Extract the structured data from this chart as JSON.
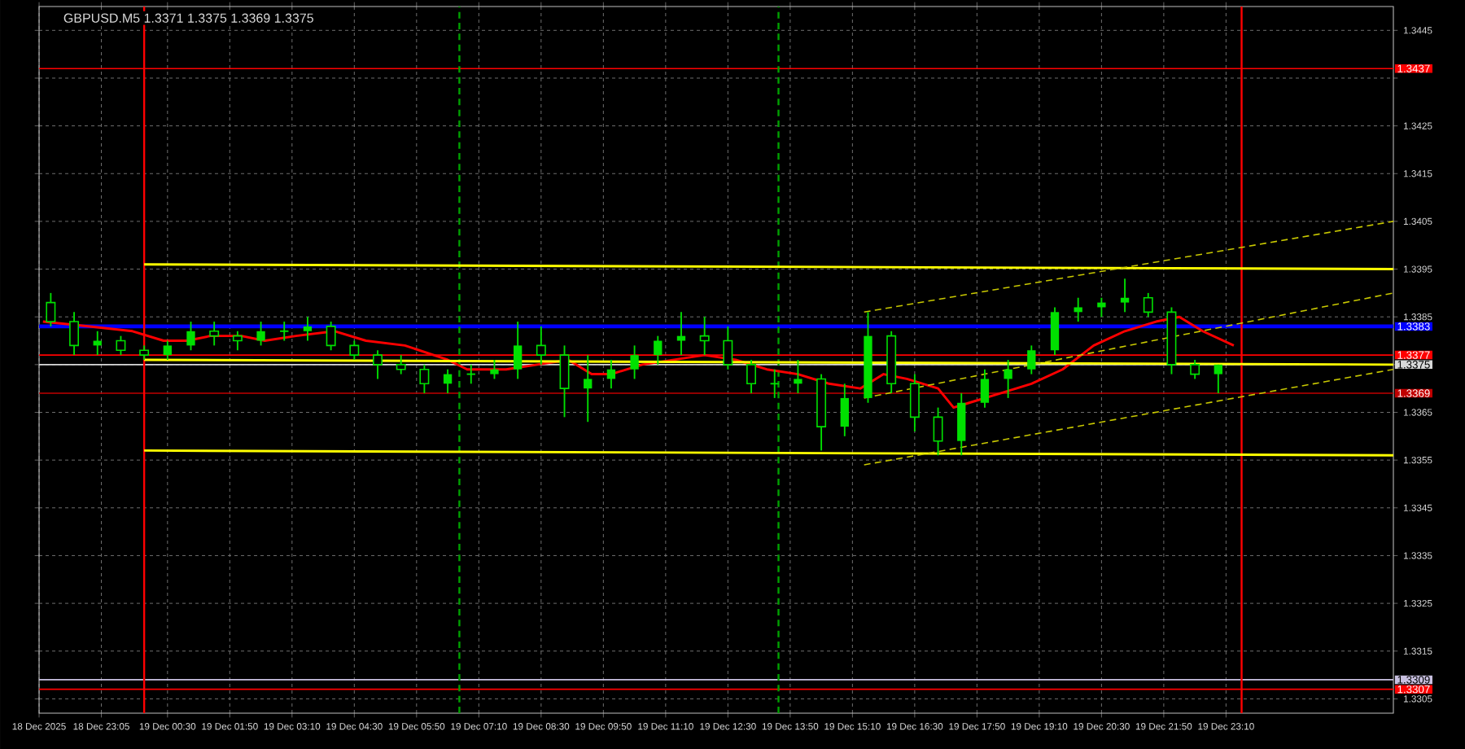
{
  "chart_data": {
    "type": "candlestick",
    "title": "GBPUSD.M5  1.3371 1.3375 1.3369 1.3375",
    "xlim": [
      "2025-12-18T21:45",
      "2025-12-20T02:45"
    ],
    "ylim": [
      1.3302,
      1.345
    ],
    "xticks": [
      {
        "value": "2025-12-18T21:45",
        "label": "18 Dec 2025"
      },
      {
        "value": "2025-12-18T23:05",
        "label": "18 Dec 23:05"
      },
      {
        "value": "2025-12-19T00:30",
        "label": "19 Dec 00:30"
      },
      {
        "value": "2025-12-19T01:50",
        "label": "19 Dec 01:50"
      },
      {
        "value": "2025-12-19T03:10",
        "label": "19 Dec 03:10"
      },
      {
        "value": "2025-12-19T04:30",
        "label": "19 Dec 04:30"
      },
      {
        "value": "2025-12-19T05:50",
        "label": "19 Dec 05:50"
      },
      {
        "value": "2025-12-19T07:10",
        "label": "19 Dec 07:10"
      },
      {
        "value": "2025-12-19T08:30",
        "label": "19 Dec 08:30"
      },
      {
        "value": "2025-12-19T09:50",
        "label": "19 Dec 09:50"
      },
      {
        "value": "2025-12-19T11:10",
        "label": "19 Dec 11:10"
      },
      {
        "value": "2025-12-19T12:30",
        "label": "19 Dec 12:30"
      },
      {
        "value": "2025-12-19T13:50",
        "label": "19 Dec 13:50"
      },
      {
        "value": "2025-12-19T15:10",
        "label": "19 Dec 15:10"
      },
      {
        "value": "2025-12-19T16:30",
        "label": "19 Dec 16:30"
      },
      {
        "value": "2025-12-19T17:50",
        "label": "19 Dec 17:50"
      },
      {
        "value": "2025-12-19T19:10",
        "label": "19 Dec 19:10"
      },
      {
        "value": "2025-12-19T20:30",
        "label": "19 Dec 20:30"
      },
      {
        "value": "2025-12-19T21:50",
        "label": "19 Dec 21:50"
      },
      {
        "value": "2025-12-19T23:10",
        "label": "19 Dec 23:10"
      }
    ],
    "yticks": [
      1.3445,
      {
        "value": 1.3435,
        "label": null
      },
      1.3425,
      1.3415,
      1.3405,
      1.3395,
      1.3385,
      {
        "value": 1.3375,
        "label": null
      },
      1.3365,
      1.3355,
      1.3345,
      1.3335,
      1.3325,
      1.3315,
      1.3305
    ],
    "grid": true,
    "series": [
      {
        "color": "#00e000",
        "x": [
          "2025-12-18T22:00",
          "2025-12-18T22:30",
          "2025-12-18T23:00",
          "2025-12-18T23:30",
          "2025-12-19T00:00",
          "2025-12-19T00:30",
          "2025-12-19T01:00",
          "2025-12-19T01:30",
          "2025-12-19T02:00",
          "2025-12-19T02:30",
          "2025-12-19T03:00",
          "2025-12-19T03:30",
          "2025-12-19T04:00",
          "2025-12-19T04:30",
          "2025-12-19T05:00",
          "2025-12-19T05:30",
          "2025-12-19T06:00",
          "2025-12-19T06:30",
          "2025-12-19T07:00",
          "2025-12-19T07:30",
          "2025-12-19T08:00",
          "2025-12-19T08:30",
          "2025-12-19T09:00",
          "2025-12-19T09:30",
          "2025-12-19T10:00",
          "2025-12-19T10:30",
          "2025-12-19T11:00",
          "2025-12-19T11:30",
          "2025-12-19T12:00",
          "2025-12-19T12:30",
          "2025-12-19T13:00",
          "2025-12-19T13:30",
          "2025-12-19T14:00",
          "2025-12-19T14:30",
          "2025-12-19T15:00",
          "2025-12-19T15:30",
          "2025-12-19T16:00",
          "2025-12-19T16:30",
          "2025-12-19T17:00",
          "2025-12-19T17:30",
          "2025-12-19T18:00",
          "2025-12-19T18:30",
          "2025-12-19T19:00",
          "2025-12-19T19:30",
          "2025-12-19T20:00",
          "2025-12-19T20:30",
          "2025-12-19T21:00",
          "2025-12-19T21:30",
          "2025-12-19T22:00",
          "2025-12-19T22:30",
          "2025-12-19T23:00"
        ],
        "ohlc": [
          [
            1.3388,
            1.339,
            1.3383,
            1.3384
          ],
          [
            1.3384,
            1.3386,
            1.3377,
            1.3379
          ],
          [
            1.3379,
            1.3382,
            1.3377,
            1.338
          ],
          [
            1.338,
            1.3381,
            1.3377,
            1.3378
          ],
          [
            1.3378,
            1.3379,
            1.3376,
            1.3377
          ],
          [
            1.3377,
            1.338,
            1.3376,
            1.3379
          ],
          [
            1.3379,
            1.3384,
            1.3378,
            1.3382
          ],
          [
            1.3382,
            1.3384,
            1.3379,
            1.3381
          ],
          [
            1.3381,
            1.3382,
            1.3378,
            1.338
          ],
          [
            1.338,
            1.3384,
            1.3379,
            1.3382
          ],
          [
            1.3382,
            1.3384,
            1.338,
            1.3382
          ],
          [
            1.3382,
            1.3385,
            1.338,
            1.3383
          ],
          [
            1.3383,
            1.3384,
            1.3378,
            1.3379
          ],
          [
            1.3379,
            1.338,
            1.3376,
            1.3377
          ],
          [
            1.3377,
            1.3378,
            1.3372,
            1.3375
          ],
          [
            1.3375,
            1.3377,
            1.3373,
            1.3374
          ],
          [
            1.3374,
            1.3375,
            1.3369,
            1.3371
          ],
          [
            1.3371,
            1.3374,
            1.3369,
            1.3373
          ],
          [
            1.3373,
            1.3375,
            1.3371,
            1.3373
          ],
          [
            1.3373,
            1.3376,
            1.3372,
            1.3374
          ],
          [
            1.3374,
            1.3384,
            1.3372,
            1.3379
          ],
          [
            1.3379,
            1.3383,
            1.3375,
            1.3377
          ],
          [
            1.3377,
            1.3379,
            1.3364,
            1.337
          ],
          [
            1.337,
            1.3377,
            1.3363,
            1.3372
          ],
          [
            1.3372,
            1.3376,
            1.337,
            1.3374
          ],
          [
            1.3374,
            1.3379,
            1.3372,
            1.3377
          ],
          [
            1.3377,
            1.3381,
            1.3375,
            1.338
          ],
          [
            1.338,
            1.3386,
            1.3377,
            1.3381
          ],
          [
            1.3381,
            1.3385,
            1.3377,
            1.338
          ],
          [
            1.338,
            1.3383,
            1.3374,
            1.3375
          ],
          [
            1.3375,
            1.3376,
            1.3369,
            1.3371
          ],
          [
            1.3371,
            1.3374,
            1.3368,
            1.3371
          ],
          [
            1.3371,
            1.3376,
            1.3369,
            1.3372
          ],
          [
            1.3372,
            1.3373,
            1.3357,
            1.3362
          ],
          [
            1.3362,
            1.3371,
            1.336,
            1.3368
          ],
          [
            1.3368,
            1.3386,
            1.3367,
            1.3381
          ],
          [
            1.3381,
            1.3382,
            1.3369,
            1.3371
          ],
          [
            1.3371,
            1.3373,
            1.3361,
            1.3364
          ],
          [
            1.3364,
            1.3366,
            1.3356,
            1.3359
          ],
          [
            1.3359,
            1.3369,
            1.3356,
            1.3367
          ],
          [
            1.3367,
            1.3374,
            1.3366,
            1.3372
          ],
          [
            1.3372,
            1.3376,
            1.3368,
            1.3374
          ],
          [
            1.3374,
            1.3379,
            1.3373,
            1.3378
          ],
          [
            1.3378,
            1.3387,
            1.3377,
            1.3386
          ],
          [
            1.3386,
            1.3389,
            1.3384,
            1.3387
          ],
          [
            1.3387,
            1.3389,
            1.3385,
            1.3388
          ],
          [
            1.3388,
            1.3393,
            1.3386,
            1.3389
          ],
          [
            1.3389,
            1.339,
            1.3385,
            1.3386
          ],
          [
            1.3386,
            1.3387,
            1.3373,
            1.3375
          ],
          [
            1.3375,
            1.3376,
            1.3372,
            1.3373
          ],
          [
            1.3373,
            1.3375,
            1.3369,
            1.3375
          ]
        ]
      },
      {
        "type": "line",
        "color": "#ff0000",
        "x": [
          "2025-12-18T21:50",
          "2025-12-18T22:50",
          "2025-12-18T23:45",
          "2025-12-19T00:25",
          "2025-12-19T00:55",
          "2025-12-19T01:25",
          "2025-12-19T02:05",
          "2025-12-19T02:35",
          "2025-12-19T03:15",
          "2025-12-19T04:05",
          "2025-12-19T04:45",
          "2025-12-19T05:35",
          "2025-12-19T06:30",
          "2025-12-19T06:55",
          "2025-12-19T07:45",
          "2025-12-19T08:25",
          "2025-12-19T09:05",
          "2025-12-19T09:35",
          "2025-12-19T10:00",
          "2025-12-19T10:40",
          "2025-12-19T11:20",
          "2025-12-19T12:00",
          "2025-12-19T12:40",
          "2025-12-19T13:20",
          "2025-12-19T14:00",
          "2025-12-19T14:40",
          "2025-12-19T15:20",
          "2025-12-19T15:50",
          "2025-12-19T16:20",
          "2025-12-19T17:00",
          "2025-12-19T17:20",
          "2025-12-19T17:40",
          "2025-12-19T18:20",
          "2025-12-19T19:00",
          "2025-12-19T19:40",
          "2025-12-19T20:20",
          "2025-12-19T21:00",
          "2025-12-19T21:40",
          "2025-12-19T22:10",
          "2025-12-19T22:40",
          "2025-12-19T23:20"
        ],
        "values": [
          1.3384,
          1.3383,
          1.3382,
          1.338,
          1.338,
          1.3381,
          1.3381,
          1.338,
          1.3381,
          1.3382,
          1.338,
          1.3379,
          1.3376,
          1.3374,
          1.3374,
          1.3375,
          1.3376,
          1.3373,
          1.3373,
          1.3375,
          1.3376,
          1.3377,
          1.3376,
          1.3374,
          1.3373,
          1.3371,
          1.337,
          1.3373,
          1.3372,
          1.337,
          1.3366,
          1.3367,
          1.3369,
          1.3371,
          1.3374,
          1.3379,
          1.3382,
          1.3384,
          1.3385,
          1.3382,
          1.3379
        ]
      },
      {
        "type": "line",
        "color": "#ffff00",
        "x": [
          "2025-12-19T00:00",
          "2025-12-20T02:45"
        ],
        "values": [
          1.3396,
          1.3395
        ]
      },
      {
        "type": "line",
        "color": "#ffff00",
        "x": [
          "2025-12-19T00:00",
          "2025-12-20T02:45"
        ],
        "values": [
          1.3376,
          1.3375
        ]
      },
      {
        "type": "line",
        "color": "#ffff00",
        "x": [
          "2025-12-19T00:00",
          "2025-12-20T02:45"
        ],
        "values": [
          1.3357,
          1.3356
        ]
      },
      {
        "type": "line",
        "color": "#c8c800",
        "line_style": "dashed",
        "x": [
          "2025-12-19T15:25",
          "2025-12-20T02:45"
        ],
        "values": [
          1.3386,
          1.3405
        ]
      },
      {
        "type": "line",
        "color": "#c8c800",
        "line_style": "dashed",
        "x": [
          "2025-12-19T15:25",
          "2025-12-20T02:45"
        ],
        "values": [
          1.3368,
          1.339
        ]
      },
      {
        "type": "line",
        "color": "#c8c800",
        "line_style": "dashed",
        "x": [
          "2025-12-19T15:25",
          "2025-12-20T02:45"
        ],
        "values": [
          1.3354,
          1.3374
        ]
      }
    ],
    "ref_lines": [
      {
        "axis": "y",
        "value": 1.3437,
        "label": "1.3437",
        "color": "#ff0000"
      },
      {
        "axis": "y",
        "value": 1.3383,
        "label": "1.3383",
        "color": "#0000ff"
      },
      {
        "axis": "y",
        "value": 1.3377,
        "label": "1.3377",
        "color": "#ff0000"
      },
      {
        "axis": "y",
        "value": 1.3375,
        "label": "1.3375",
        "color": "#d8d8d8"
      },
      {
        "axis": "y",
        "value": 1.3369,
        "label": "1.3369",
        "color": "#c00000"
      },
      {
        "axis": "y",
        "value": 1.3309,
        "label": "1.3309",
        "color": "#c8c0e0"
      },
      {
        "axis": "y",
        "value": 1.3307,
        "label": "1.3307",
        "color": "#ff0000"
      },
      {
        "axis": "x",
        "value": "2025-12-19T00:00",
        "color": "#ff0000"
      },
      {
        "axis": "x",
        "value": "2025-12-19T23:30",
        "color": "#ff0000"
      },
      {
        "axis": "x",
        "value": "2025-12-19T06:45",
        "color": "#00a000",
        "line_style": "dashed"
      },
      {
        "axis": "x",
        "value": "2025-12-19T13:35",
        "color": "#00a000",
        "line_style": "dashed"
      }
    ]
  }
}
